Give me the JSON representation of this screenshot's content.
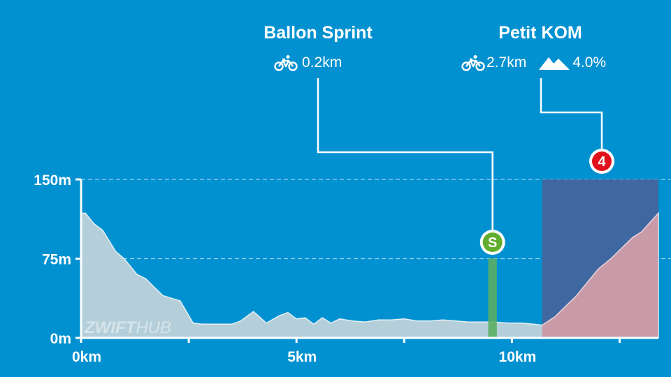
{
  "watermark": {
    "part1": "ZWIFT",
    "part2": "HUB"
  },
  "segments": [
    {
      "id": "sprint",
      "title": "Ballon Sprint",
      "distance": "0.2km",
      "icon": "bicycle-icon",
      "badge": "S",
      "badge_color": "#62ae2c",
      "bar_color": "#5aae64",
      "start_km": 9.45,
      "end_km": 9.65
    },
    {
      "id": "kom",
      "title": "Petit KOM",
      "distance": "2.7km",
      "gradient": "4.0%",
      "icon": "bicycle-icon",
      "gradient_icon": "mountain-icon",
      "badge": "4",
      "badge_color": "#e0111a",
      "box_color": "#3f67a0",
      "fill_color": "#c99aa8",
      "start_km": 10.7,
      "end_km": 13.4
    }
  ],
  "chart_data": {
    "type": "area",
    "xlabel": "",
    "ylabel": "",
    "xlim": [
      0,
      13.4
    ],
    "ylim": [
      0,
      150
    ],
    "x_ticks": [
      {
        "value": 0,
        "label": "0km"
      },
      {
        "value": 2.5,
        "label": ""
      },
      {
        "value": 5,
        "label": "5km"
      },
      {
        "value": 7.5,
        "label": ""
      },
      {
        "value": 10,
        "label": "10km"
      },
      {
        "value": 12.5,
        "label": ""
      }
    ],
    "y_ticks": [
      {
        "value": 0,
        "label": "0m"
      },
      {
        "value": 75,
        "label": "75m"
      },
      {
        "value": 150,
        "label": "150m"
      }
    ],
    "grid": "dashed horizontal at 75 and 150",
    "fill_color": "#b4cfd9",
    "series": [
      {
        "x": [
          0,
          0.1,
          0.3,
          0.5,
          0.8,
          1.0,
          1.3,
          1.5,
          1.9,
          2.3,
          2.6,
          2.8,
          3.0,
          3.5,
          3.7,
          4.0,
          4.3,
          4.6,
          4.8,
          5.0,
          5.2,
          5.4,
          5.6,
          5.8,
          6.0,
          6.3,
          6.6,
          6.9,
          7.2,
          7.5,
          7.8,
          8.1,
          8.4,
          8.7,
          9.0,
          9.3,
          9.6,
          9.9,
          10.2,
          10.5,
          10.7,
          11.0,
          11.5,
          12.0,
          12.3,
          12.8,
          13.0,
          13.4
        ],
        "y": [
          118,
          118,
          108,
          102,
          82,
          75,
          60,
          56,
          40,
          35,
          14,
          13,
          13,
          13,
          16,
          25,
          14,
          21,
          24,
          18,
          19,
          13,
          19,
          14,
          18,
          16,
          15,
          17,
          17,
          18,
          16,
          16,
          17,
          16,
          15,
          15,
          15,
          14,
          14,
          13,
          12,
          20,
          40,
          65,
          75,
          95,
          100,
          118
        ]
      }
    ]
  }
}
